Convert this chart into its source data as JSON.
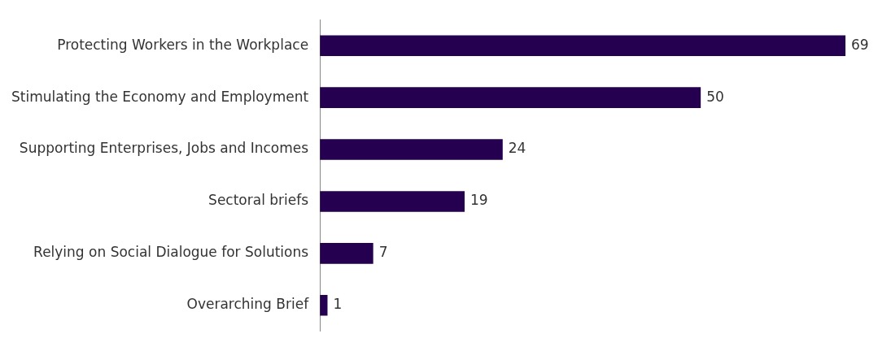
{
  "chart_data": {
    "type": "bar",
    "orientation": "horizontal",
    "categories": [
      "Protecting Workers in the Workplace",
      "Stimulating the Economy and Employment",
      "Supporting Enterprises, Jobs and Incomes",
      "Sectoral briefs",
      "Relying on Social Dialogue for Solutions",
      "Overarching Brief"
    ],
    "values": [
      69,
      50,
      24,
      19,
      7,
      1
    ],
    "color": "#250050",
    "data_labels": true,
    "tick_labels": "y"
  }
}
